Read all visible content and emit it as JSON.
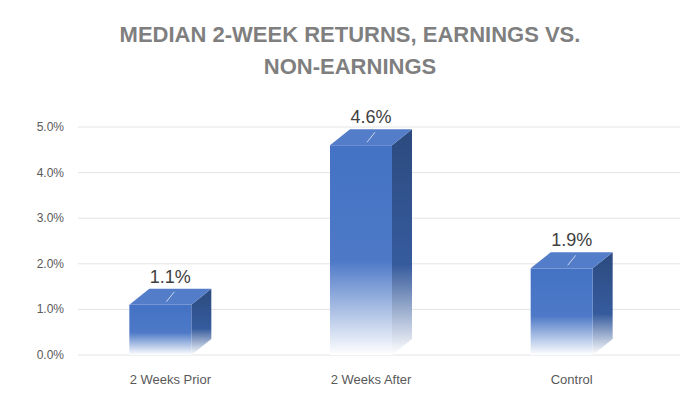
{
  "chart_data": {
    "type": "bar",
    "title": "MEDIAN 2-WEEK RETURNS, EARNINGS VS. NON-EARNINGS",
    "categories": [
      "2 Weeks Prior",
      "2 Weeks After",
      "Control"
    ],
    "values": [
      1.1,
      4.6,
      1.9
    ],
    "value_labels": [
      "1.1%",
      "4.6%",
      "1.9%"
    ],
    "color": "#4472c4",
    "ylim": [
      0,
      5
    ],
    "yticks": [
      {
        "value": 0,
        "label": "0.0%"
      },
      {
        "value": 1,
        "label": "1.0%"
      },
      {
        "value": 2,
        "label": "2.0%"
      },
      {
        "value": 3,
        "label": "3.0%"
      },
      {
        "value": 4,
        "label": "4.0%"
      },
      {
        "value": 5,
        "label": "5.0%"
      }
    ],
    "grid": true,
    "data_labels": true
  }
}
